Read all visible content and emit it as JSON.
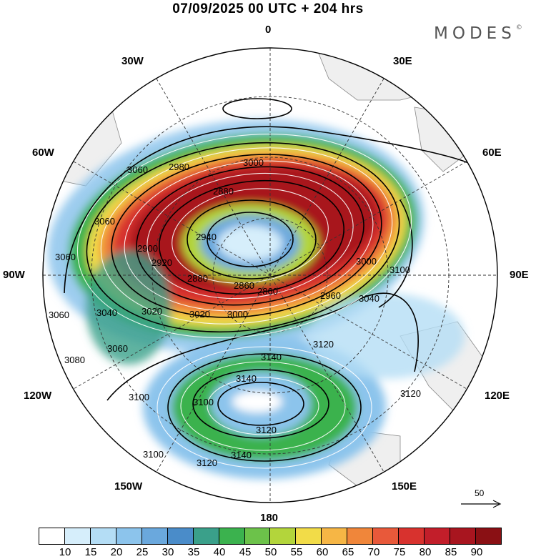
{
  "title": "07/09/2025  00 UTC  + 204 hrs",
  "brand": {
    "text": "MODES",
    "mark": "©"
  },
  "longitude_labels": {
    "top": "0",
    "right_top": "30E",
    "right_upper": "60E",
    "right": "90E",
    "right_lower": "120E",
    "right_bottom": "150E",
    "bottom": "180",
    "left_bottom": "150W",
    "left_lower": "120W",
    "left": "90W",
    "left_upper": "60W",
    "left_top": "30W"
  },
  "contour_labels": [
    "3060",
    "2980",
    "3000",
    "2880",
    "2860",
    "3060",
    "2900",
    "2940",
    "2920",
    "2880",
    "2860",
    "3060",
    "3040",
    "3020",
    "3020",
    "3000",
    "3000",
    "2960",
    "3040",
    "3060",
    "3080",
    "3060",
    "3140",
    "3120",
    "3100",
    "3140",
    "3100",
    "3120",
    "3140",
    "3120",
    "3120",
    "3100",
    "3100"
  ],
  "reference_vector": {
    "label": "50"
  },
  "colorbar": {
    "colors": [
      "#ffffff",
      "#d6eefb",
      "#b4ddf5",
      "#8cc4ec",
      "#6aa8dd",
      "#4a8cc9",
      "#3aa08a",
      "#3bb24e",
      "#6cc24a",
      "#b3d53b",
      "#f2dc48",
      "#f6b645",
      "#f0863a",
      "#e8593a",
      "#d8322e",
      "#c21e2a",
      "#a8151f",
      "#8a1014"
    ],
    "tick_labels": [
      "10",
      "15",
      "20",
      "25",
      "30",
      "35",
      "40",
      "45",
      "50",
      "55",
      "60",
      "65",
      "70",
      "75",
      "80",
      "85",
      "90"
    ]
  }
}
